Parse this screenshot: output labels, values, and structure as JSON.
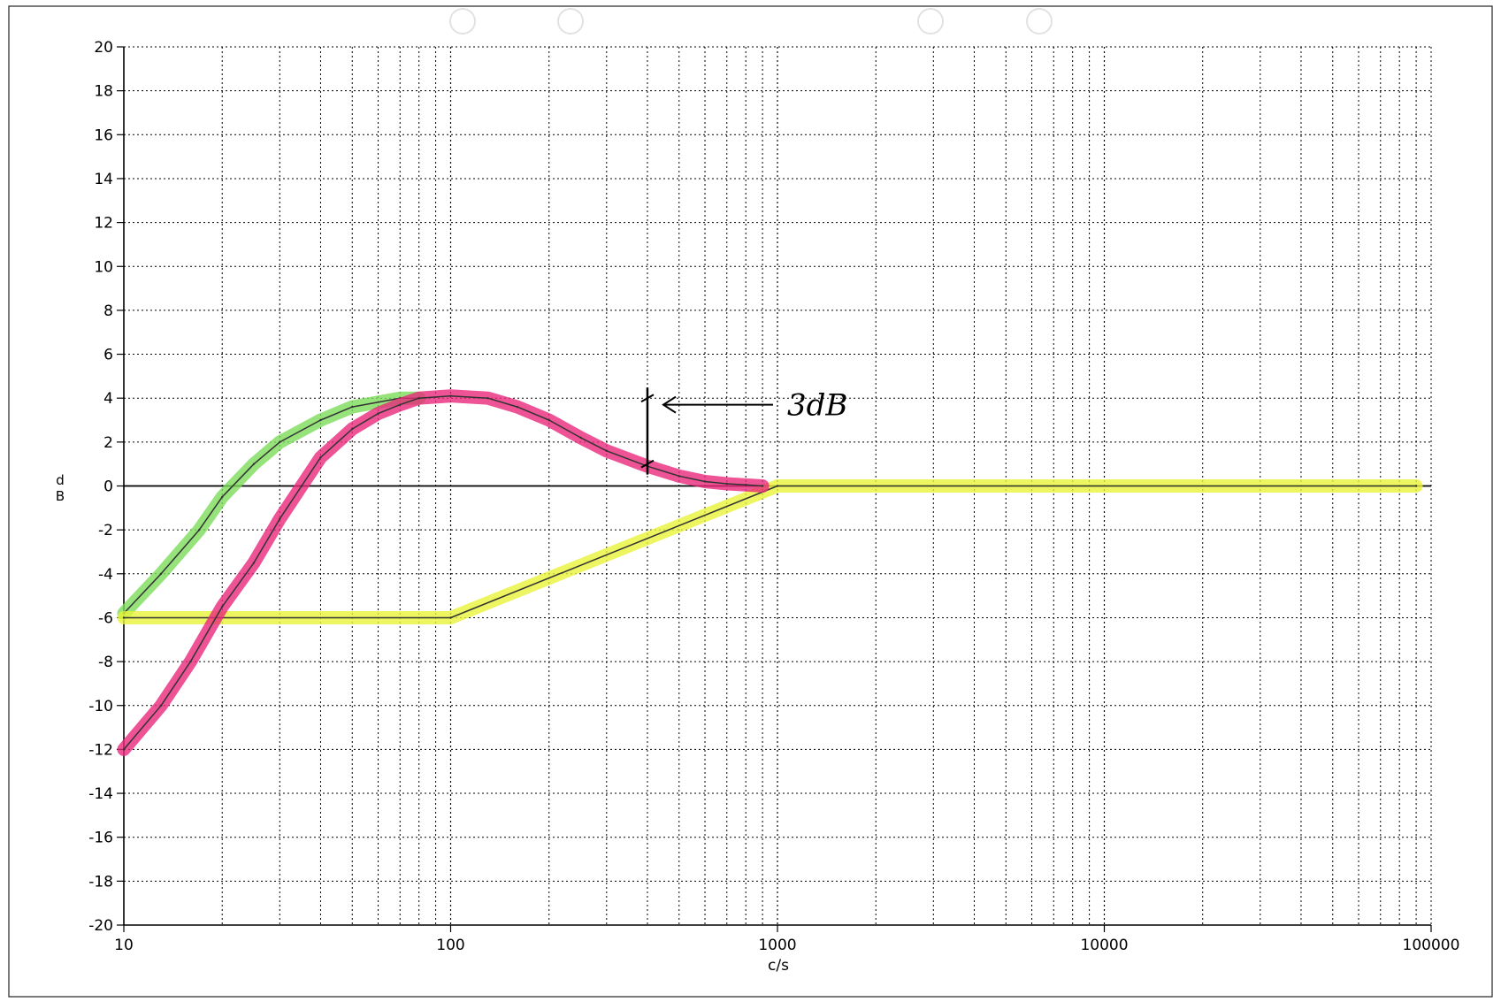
{
  "chart_data": {
    "type": "line",
    "xscale": "log",
    "xlim": [
      10,
      100000
    ],
    "ylim": [
      -20,
      20
    ],
    "xlabel": "c/s",
    "ylabel": "dB",
    "x_ticks": [
      10,
      100,
      1000,
      10000,
      100000
    ],
    "x_tick_labels": [
      "10",
      "100",
      "1000",
      "10000",
      "100000"
    ],
    "y_ticks": [
      20,
      18,
      16,
      14,
      12,
      10,
      8,
      6,
      4,
      2,
      0,
      -2,
      -4,
      -6,
      -8,
      -10,
      -12,
      -14,
      -16,
      -18,
      -20
    ],
    "y_tick_labels": [
      "20",
      "18",
      "16",
      "14",
      "12",
      "10",
      "8",
      "6",
      "4",
      "2",
      "0",
      "-2",
      "-4",
      "-6",
      "-8",
      "-10",
      "-12",
      "-14",
      "-16",
      "-18",
      "-20"
    ],
    "grid": true,
    "series": [
      {
        "color": "#7ddc5a",
        "x": [
          10,
          13,
          17,
          20,
          25,
          30,
          40,
          50,
          70,
          80
        ],
        "y": [
          -5.8,
          -4,
          -2,
          -0.5,
          1,
          2,
          3,
          3.6,
          4,
          4
        ]
      },
      {
        "color": "#e8f23a",
        "x": [
          10,
          100,
          1000,
          90000
        ],
        "y": [
          -6,
          -6,
          0,
          0
        ]
      },
      {
        "color": "#e8287a",
        "x": [
          10,
          13,
          16,
          20,
          25,
          30,
          35,
          40,
          50,
          60,
          70,
          80,
          100,
          130,
          160,
          200,
          250,
          300,
          400,
          500,
          600,
          700,
          800,
          900
        ],
        "y": [
          -12,
          -10,
          -8,
          -5.5,
          -3.5,
          -1.5,
          0,
          1.3,
          2.6,
          3.3,
          3.7,
          4,
          4.1,
          4,
          3.6,
          3,
          2.2,
          1.6,
          0.9,
          0.45,
          0.2,
          0.1,
          0.05,
          0
        ]
      }
    ],
    "annotation": {
      "text": "3dB",
      "x": 400,
      "y_from": 1,
      "y_to": 4
    }
  }
}
